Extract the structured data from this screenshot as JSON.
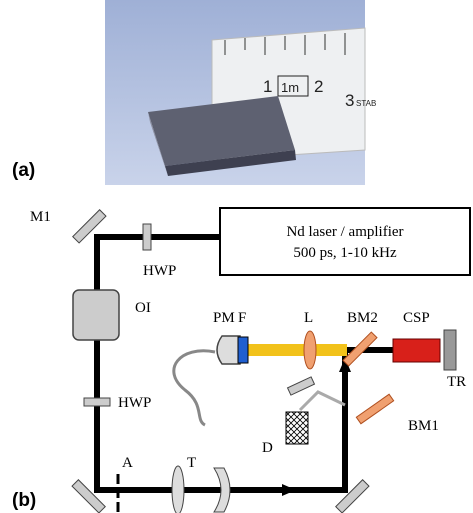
{
  "panel_a": {
    "label": "(a)",
    "ruler": {
      "marks": [
        "1",
        "1m",
        "2",
        "3",
        "STAB"
      ]
    }
  },
  "panel_b": {
    "label": "(b)",
    "laser": {
      "line1": "Nd laser / amplifier",
      "line2": "500 ps, 1-10 kHz"
    },
    "components": {
      "m1": "M1",
      "hwp_top": "HWP",
      "oi": "OI",
      "hwp_side": "HWP",
      "a": "A",
      "t": "T",
      "d": "D",
      "bm1": "BM1",
      "bm2": "BM2",
      "pm": "PM",
      "f": "F",
      "l": "L",
      "csp": "CSP",
      "tr": "TR"
    }
  }
}
